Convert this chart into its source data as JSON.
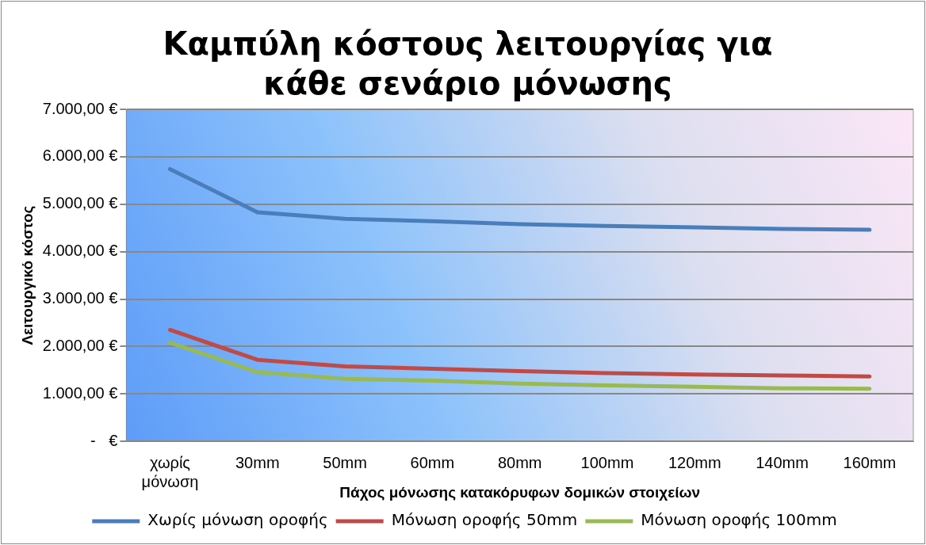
{
  "chart_data": {
    "type": "line",
    "title": "Καμπύλη κόστους λειτουργίας για κάθε σενάριο μόνωσης",
    "xlabel": "Πάχος μόνωσης κατακόρυφων δομικών στοιχείων",
    "ylabel": "Λειτουργικό κόστος",
    "categories": [
      "χωρίς μόνωση",
      "30mm",
      "50mm",
      "60mm",
      "80mm",
      "100mm",
      "120mm",
      "140mm",
      "160mm"
    ],
    "series": [
      {
        "name": "Χωρίς μόνωση οροφής",
        "color": "#4a7ebb",
        "values": [
          5740,
          4830,
          4690,
          4640,
          4580,
          4540,
          4510,
          4480,
          4460
        ]
      },
      {
        "name": "Μόνωση οροφής 50mm",
        "color": "#be4b48",
        "values": [
          2350,
          1720,
          1580,
          1530,
          1480,
          1440,
          1410,
          1390,
          1370
        ]
      },
      {
        "name": "Μόνωση οροφής 100mm",
        "color": "#98b954",
        "values": [
          2080,
          1460,
          1320,
          1280,
          1220,
          1180,
          1150,
          1120,
          1110
        ]
      }
    ],
    "ylim": [
      0,
      7000
    ],
    "yticks": [
      {
        "value": 0,
        "label": "-   €"
      },
      {
        "value": 1000,
        "label": "1.000,00 €"
      },
      {
        "value": 2000,
        "label": "2.000,00 €"
      },
      {
        "value": 3000,
        "label": "3.000,00 €"
      },
      {
        "value": 4000,
        "label": "4.000,00 €"
      },
      {
        "value": 5000,
        "label": "5.000,00 €"
      },
      {
        "value": 6000,
        "label": "6.000,00 €"
      },
      {
        "value": 7000,
        "label": "7.000,00 €"
      }
    ],
    "grid": "y",
    "legend": "bottom",
    "marker": "none",
    "line_style": "solid"
  }
}
